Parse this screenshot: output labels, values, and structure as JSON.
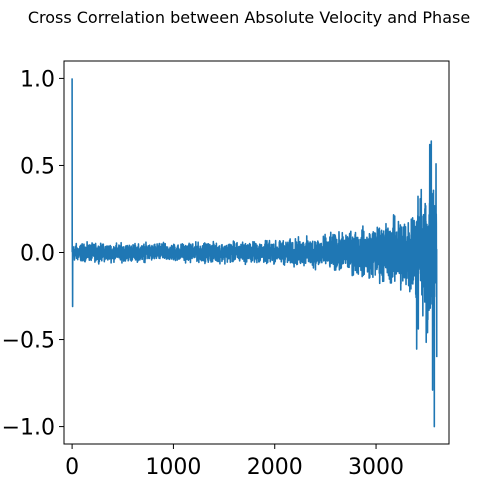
{
  "chart_data": {
    "type": "line",
    "title": "Cross Correlation between Absolute Velocity and Phase",
    "xlabel": "",
    "ylabel": "",
    "xlim": [
      -80,
      3720
    ],
    "ylim": [
      -1.1,
      1.1
    ],
    "grid": false,
    "x_ticks": [
      0,
      1000,
      2000,
      3000
    ],
    "x_tick_labels": [
      "0",
      "1000",
      "2000",
      "3000"
    ],
    "y_ticks": [
      1.0,
      0.5,
      0.0,
      -0.5,
      -1.0
    ],
    "y_tick_labels": [
      "1.0",
      "0.5",
      "0.0",
      "−0.5",
      "−1.0"
    ],
    "series": [
      {
        "color": "#1f77b4",
        "length": 3600,
        "start_lag": 0,
        "spikes": [
          {
            "x": 0,
            "y": 1.0
          },
          {
            "x": 5,
            "y": -0.31
          },
          {
            "x": 3508,
            "y": -0.46
          },
          {
            "x": 3530,
            "y": 0.62
          },
          {
            "x": 3545,
            "y": 0.64
          },
          {
            "x": 3558,
            "y": -0.79
          },
          {
            "x": 3575,
            "y": -1.0
          }
        ],
        "noise_envelope": [
          {
            "x": 0,
            "amplitude": 0.04
          },
          {
            "x": 1000,
            "amplitude": 0.04
          },
          {
            "x": 2000,
            "amplitude": 0.05
          },
          {
            "x": 2600,
            "amplitude": 0.08
          },
          {
            "x": 3000,
            "amplitude": 0.12
          },
          {
            "x": 3300,
            "amplitude": 0.18
          },
          {
            "x": 3450,
            "amplitude": 0.25
          },
          {
            "x": 3550,
            "amplitude": 0.35
          }
        ]
      }
    ]
  }
}
